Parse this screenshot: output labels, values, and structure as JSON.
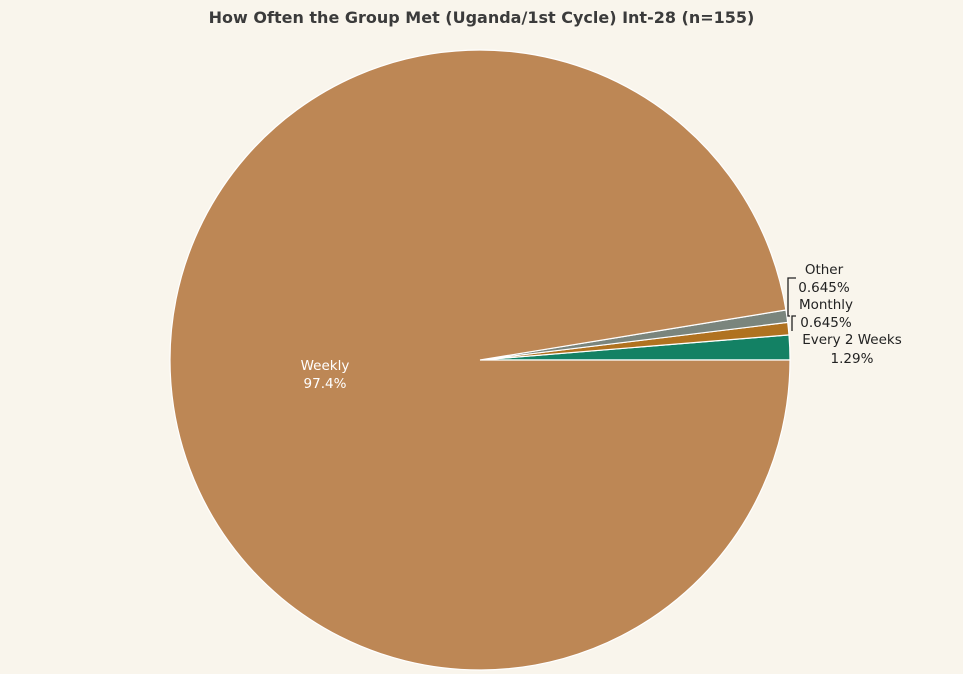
{
  "chart_data": {
    "type": "pie",
    "title": "How Often the Group Met (Uganda/1st Cycle) Int-28 (n=155)",
    "slices": [
      {
        "label": "Weekly",
        "percent_text": "97.4%",
        "value": 97.419,
        "color": "#bd8755"
      },
      {
        "label": "Every 2 Weeks",
        "percent_text": "1.29%",
        "value": 1.29,
        "color": "#138164"
      },
      {
        "label": "Monthly",
        "percent_text": "0.645%",
        "value": 0.645,
        "color": "#b07220"
      },
      {
        "label": "Other",
        "percent_text": "0.645%",
        "value": 0.645,
        "color": "#7a857d"
      }
    ]
  }
}
